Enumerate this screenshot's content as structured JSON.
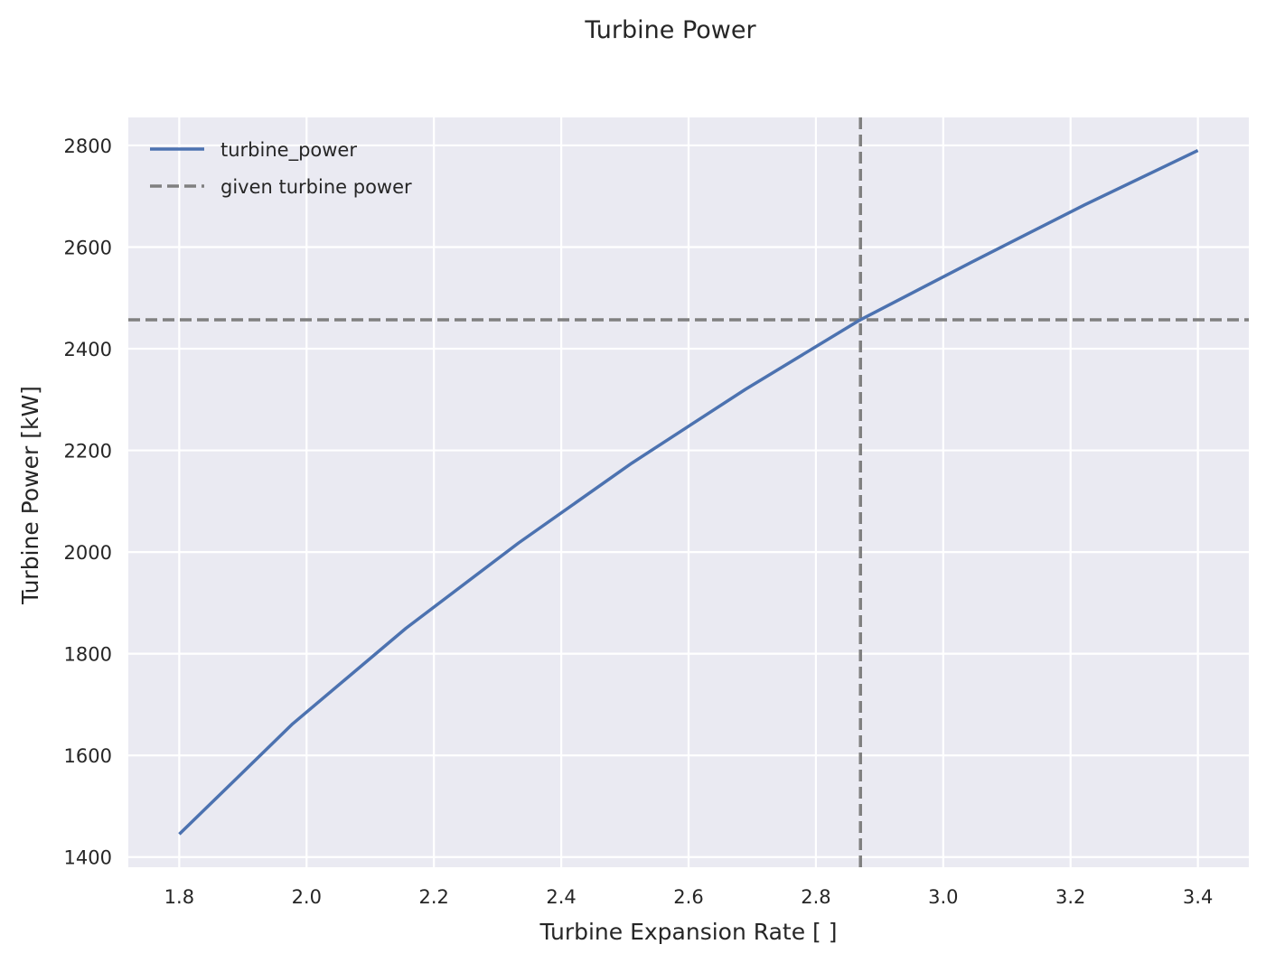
{
  "chart_data": {
    "type": "line",
    "title": "Turbine Power",
    "xlabel": "Turbine Expansion Rate [ ]",
    "ylabel": "Turbine Power [kW]",
    "xlim": [
      1.72,
      3.48
    ],
    "ylim": [
      1380,
      2855
    ],
    "xticks": [
      1.8,
      2.0,
      2.2,
      2.4,
      2.6,
      2.8,
      3.0,
      3.2,
      3.4
    ],
    "xtick_labels": [
      "1.8",
      "2.0",
      "2.2",
      "2.4",
      "2.6",
      "2.8",
      "3.0",
      "3.2",
      "3.4"
    ],
    "yticks": [
      1400,
      1600,
      1800,
      2000,
      2200,
      2400,
      2600,
      2800
    ],
    "ytick_labels": [
      "1400",
      "1600",
      "1800",
      "2000",
      "2200",
      "2400",
      "2600",
      "2800"
    ],
    "grid": true,
    "legend_position": "top-left",
    "series": [
      {
        "name": "turbine_power",
        "color": "#4c72b0",
        "style": "solid",
        "x": [
          1.8,
          1.978,
          2.156,
          2.333,
          2.511,
          2.689,
          2.867,
          3.044,
          3.222,
          3.4
        ],
        "y": [
          1445,
          1662,
          1850,
          2018,
          2175,
          2320,
          2455,
          2570,
          2683,
          2790
        ]
      }
    ],
    "reference_lines": [
      {
        "name": "given turbine power",
        "orientation": "horizontal",
        "value": 2457,
        "color": "#808080",
        "style": "dashed"
      },
      {
        "orientation": "vertical",
        "value": 2.87,
        "color": "#808080",
        "style": "dashed"
      }
    ]
  }
}
